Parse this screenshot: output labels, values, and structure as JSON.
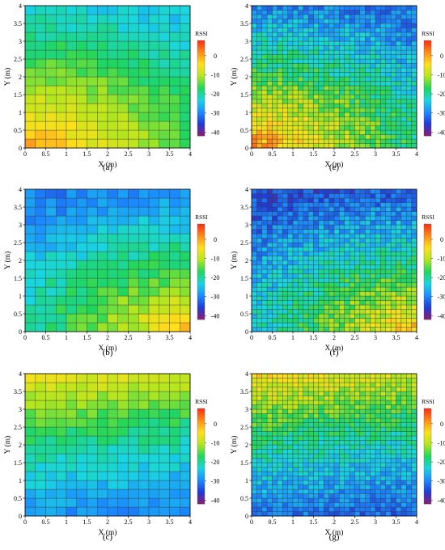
{
  "colorbar": {
    "title": "RSSI",
    "ticks": [
      0,
      -10,
      -20,
      -30,
      -40
    ],
    "range": [
      -42,
      8
    ],
    "colormap": [
      "#8b1a6e",
      "#1f3bd8",
      "#1a8cff",
      "#19d6e0",
      "#1fd65c",
      "#b5e61d",
      "#ffe01a",
      "#ff8c1a",
      "#ff2a12"
    ]
  },
  "chart_data": [
    {
      "type": "heatmap",
      "panel": "a",
      "caption": "(a)",
      "xlabel": "X (m)",
      "ylabel": "Y (m)",
      "xlim": [
        0,
        4
      ],
      "ylim": [
        0,
        4
      ],
      "xticks": [
        "0",
        "0.5",
        "1",
        "1.5",
        "2",
        "2.5",
        "3",
        "3.5",
        "4"
      ],
      "yticks": [
        "0",
        "0.5",
        "1",
        "1.5",
        "2",
        "2.5",
        "3",
        "3.5",
        "4"
      ],
      "grid_resolution": 16,
      "pattern": "corner",
      "center": [
        0,
        0
      ],
      "peak_rssi": 2,
      "min_rssi": -24,
      "noise": 2
    },
    {
      "type": "heatmap",
      "panel": "e",
      "caption": "(e)",
      "xlabel": "X (m)",
      "ylabel": "Y (m)",
      "xlim": [
        0,
        4
      ],
      "ylim": [
        0,
        4
      ],
      "xticks": [
        "0",
        "0.5",
        "1",
        "1.5",
        "2",
        "2.5",
        "3",
        "3.5",
        "4"
      ],
      "yticks": [
        "0",
        "0.5",
        "1",
        "1.5",
        "2",
        "2.5",
        "3",
        "3.5",
        "4"
      ],
      "grid_resolution": 32,
      "pattern": "corner",
      "center": [
        0,
        0
      ],
      "peak_rssi": 4,
      "min_rssi": -30,
      "noise": 4
    },
    {
      "type": "heatmap",
      "panel": "b",
      "caption": "(b)",
      "xlabel": "X (m)",
      "ylabel": "Y (m)",
      "xlim": [
        0,
        4
      ],
      "ylim": [
        0,
        4
      ],
      "xticks": [
        "0",
        "0.5",
        "1",
        "1.5",
        "2",
        "2.5",
        "3",
        "3.5",
        "4"
      ],
      "yticks": [
        "0",
        "0.5",
        "1",
        "1.5",
        "2",
        "2.5",
        "3",
        "3.5",
        "4"
      ],
      "grid_resolution": 16,
      "pattern": "corner",
      "center": [
        4,
        0
      ],
      "peak_rssi": -1,
      "min_rssi": -30,
      "noise": 2.5
    },
    {
      "type": "heatmap",
      "panel": "f",
      "caption": "(f)",
      "xlabel": "X (m)",
      "ylabel": "Y (m)",
      "xlim": [
        0,
        4
      ],
      "ylim": [
        0,
        4
      ],
      "xticks": [
        "0",
        "0.5",
        "1",
        "1.5",
        "2",
        "2.5",
        "3",
        "3.5",
        "4"
      ],
      "yticks": [
        "0",
        "0.5",
        "1",
        "1.5",
        "2",
        "2.5",
        "3",
        "3.5",
        "4"
      ],
      "grid_resolution": 32,
      "pattern": "corner",
      "center": [
        4,
        0
      ],
      "peak_rssi": 0,
      "min_rssi": -34,
      "noise": 4
    },
    {
      "type": "heatmap",
      "panel": "c",
      "caption": "(c)",
      "xlabel": "X (m)",
      "ylabel": "Y (m)",
      "xlim": [
        0,
        4
      ],
      "ylim": [
        0,
        4
      ],
      "xticks": [
        "0",
        "0.5",
        "1",
        "1.5",
        "2",
        "2.5",
        "3",
        "3.5",
        "4"
      ],
      "yticks": [
        "0",
        "0.5",
        "1",
        "1.5",
        "2",
        "2.5",
        "3",
        "3.5",
        "4"
      ],
      "grid_resolution": 16,
      "pattern": "top",
      "center": [
        0,
        4
      ],
      "peak_rssi": -4,
      "min_rssi": -30,
      "noise": 2
    },
    {
      "type": "heatmap",
      "panel": "g",
      "caption": "(g)",
      "xlabel": "X (m)",
      "ylabel": "Y (m)",
      "xlim": [
        0,
        4
      ],
      "ylim": [
        0,
        4
      ],
      "xticks": [
        "0",
        "0.5",
        "1",
        "1.5",
        "2",
        "2.5",
        "3",
        "3.5",
        "4"
      ],
      "yticks": [
        "0",
        "0.5",
        "1",
        "1.5",
        "2",
        "2.5",
        "3",
        "3.5",
        "4"
      ],
      "grid_resolution": 32,
      "pattern": "top",
      "center": [
        0,
        4
      ],
      "peak_rssi": -3,
      "min_rssi": -32,
      "noise": 3.5
    }
  ]
}
